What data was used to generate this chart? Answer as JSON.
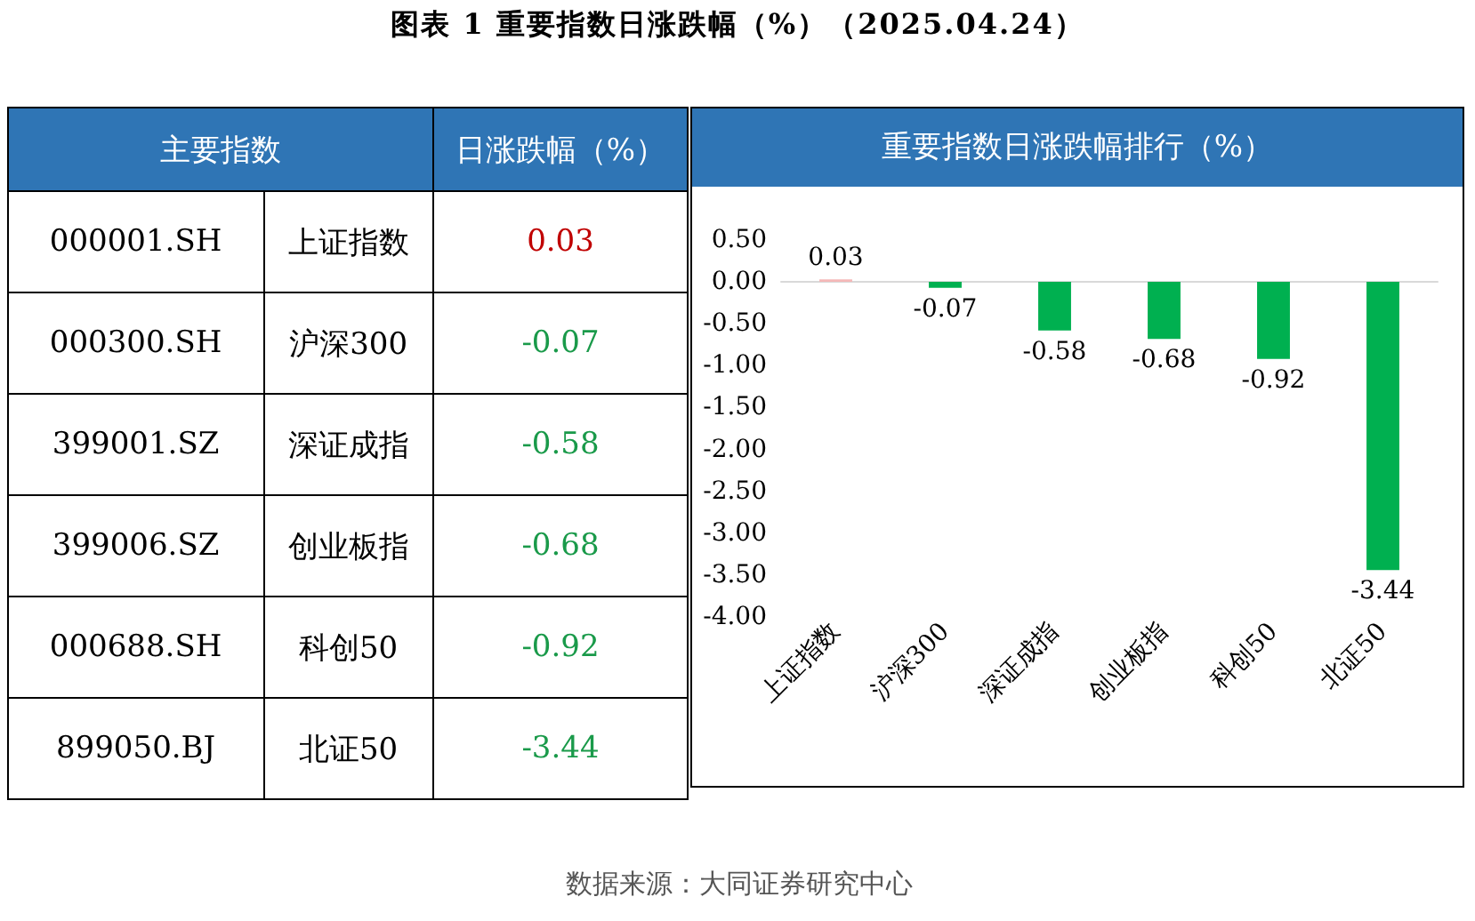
{
  "chart_data": [
    {
      "type": "other",
      "title": "图表 1  重要指数日涨跌幅（%）（2025.04.24）",
      "annotations": [
        "主要指数",
        "日涨跌幅（%）",
        "000001.SH",
        "上证指数",
        "0.03",
        "000300.SH",
        "沪深300",
        "-0.07",
        "399001.SZ",
        "深证成指",
        "-0.58",
        "399006.SZ",
        "创业板指",
        "-0.68",
        "000688.SH",
        "科创50",
        "-0.92",
        "899050.BJ",
        "北证50",
        "-3.44"
      ]
    },
    {
      "type": "bar",
      "title": "重要指数日涨跌幅排行（%）",
      "categories": [
        "上证指数",
        "沪深300",
        "深证成指",
        "创业板指",
        "科创50",
        "北证50"
      ],
      "values": [
        0.03,
        -0.07,
        -0.58,
        -0.68,
        -0.92,
        -3.44
      ],
      "colors": [
        "#f4b8b8",
        "#00b050",
        "#00b050",
        "#00b050",
        "#00b050",
        "#00b050"
      ],
      "data_labels": true,
      "ylim": [
        -4,
        0.5
      ],
      "yticks": [
        {
          "value": 0.5,
          "label": "0.50"
        },
        {
          "value": 0,
          "label": "0.00"
        },
        {
          "value": -0.5,
          "label": "-0.50"
        },
        {
          "value": -1,
          "label": "-1.00"
        },
        {
          "value": -1.5,
          "label": "-1.50"
        },
        {
          "value": -2,
          "label": "-2.00"
        },
        {
          "value": -2.5,
          "label": "-2.50"
        },
        {
          "value": -3,
          "label": "-3.00"
        },
        {
          "value": -3.5,
          "label": "-3.50"
        },
        {
          "value": -4,
          "label": "-4.00"
        }
      ],
      "annotations": [
        "数据来源：大同证券研究中心"
      ]
    }
  ]
}
